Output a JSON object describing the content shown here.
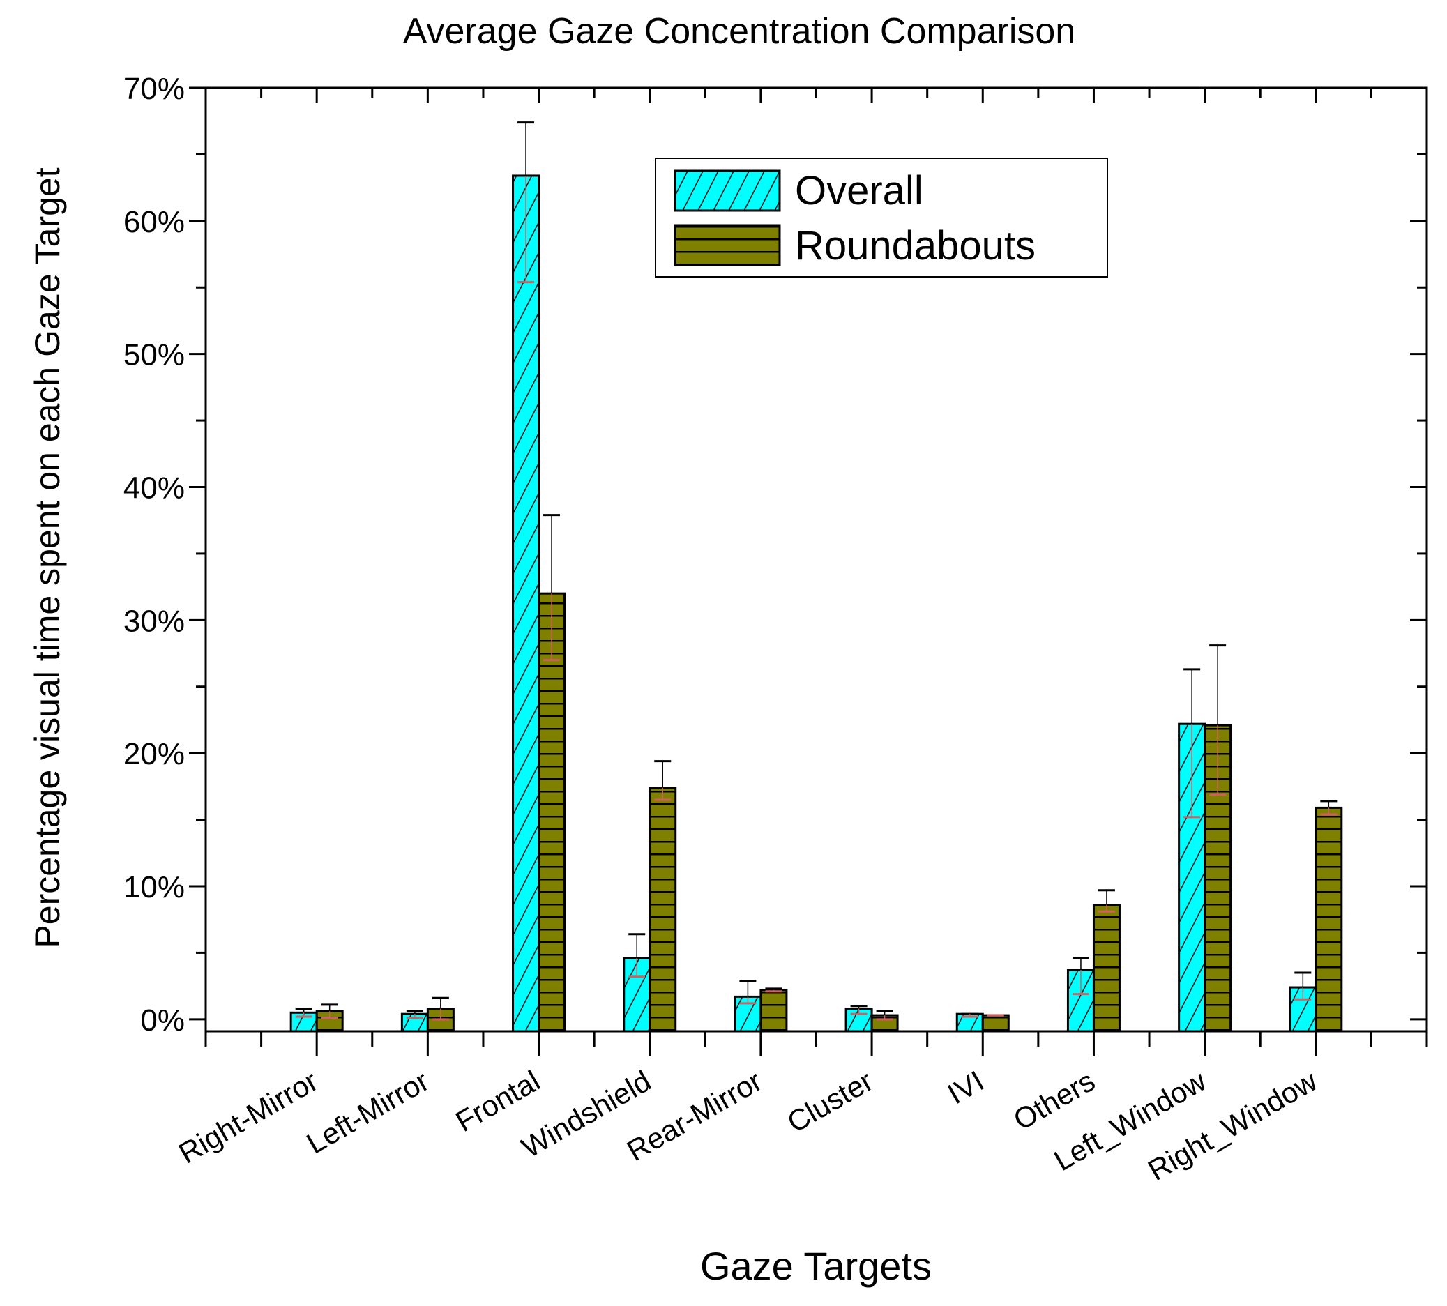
{
  "chart_data": {
    "type": "bar",
    "title": "Average Gaze Concentration Comparison",
    "xlabel": "Gaze Targets",
    "ylabel": "Percentage visual time spent on each Gaze Target",
    "ylim": [
      -0.9,
      70
    ],
    "yticks": [
      0,
      10,
      20,
      30,
      40,
      50,
      60,
      70
    ],
    "ytick_labels": [
      "0%",
      "10%",
      "20%",
      "30%",
      "40%",
      "50%",
      "60%",
      "70%"
    ],
    "grid": false,
    "legend_position": "top-right",
    "categories": [
      "Right-Mirror",
      "Left-Mirror",
      "Frontal",
      "Windshield",
      "Rear-Mirror",
      "Cluster",
      "IVI",
      "Others",
      "Left_Window",
      "Right_Window"
    ],
    "series": [
      {
        "name": "Overall",
        "color": "#00FFFF",
        "pattern": "diagonal-hatch",
        "values": [
          0.5,
          0.4,
          63.4,
          4.6,
          1.7,
          0.8,
          0.4,
          3.7,
          22.2,
          2.4
        ],
        "error_upper": [
          0.8,
          0.6,
          67.4,
          6.4,
          2.9,
          1.0,
          0.4,
          4.6,
          26.3,
          3.5
        ],
        "error_lower": [
          0.2,
          0.1,
          55.4,
          3.2,
          1.2,
          0.4,
          0.2,
          1.9,
          15.2,
          1.5
        ]
      },
      {
        "name": "Roundabouts",
        "color": "#808000",
        "pattern": "horizontal-lines",
        "values": [
          0.6,
          0.8,
          32.0,
          17.4,
          2.2,
          0.3,
          0.3,
          8.6,
          22.1,
          15.9
        ],
        "error_upper": [
          1.1,
          1.6,
          37.9,
          19.4,
          2.3,
          0.6,
          0.3,
          9.7,
          28.1,
          16.4
        ],
        "error_lower": [
          0.1,
          0.0,
          27.0,
          16.5,
          2.1,
          0.0,
          0.3,
          8.1,
          16.9,
          15.4
        ]
      }
    ]
  }
}
